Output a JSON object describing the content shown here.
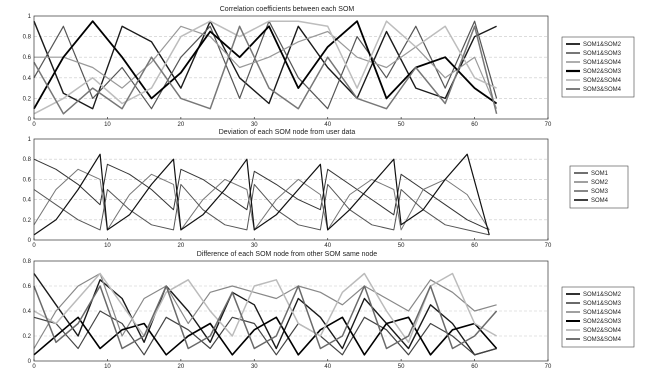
{
  "chart_data": [
    {
      "type": "line",
      "title": "Correlation coefficients between each SOM",
      "xlim": [
        0,
        70
      ],
      "ylim": [
        0,
        1
      ],
      "xticks": [
        0,
        10,
        20,
        30,
        40,
        50,
        60,
        70
      ],
      "yticks": [
        0,
        0.2,
        0.4,
        0.6,
        0.8,
        1
      ],
      "grid": "y-dashed",
      "legend_position": "right",
      "series": [
        {
          "name": "SOM1&SOM2",
          "color": "#1a1a1a",
          "width": 1.4,
          "x": [
            0,
            4,
            8,
            12,
            16,
            20,
            24,
            28,
            32,
            36,
            40,
            44,
            48,
            52,
            56,
            60,
            63
          ],
          "y": [
            0.95,
            0.25,
            0.1,
            0.9,
            0.75,
            0.3,
            0.95,
            0.4,
            0.15,
            0.9,
            0.5,
            0.2,
            0.85,
            0.3,
            0.2,
            0.8,
            0.9
          ]
        },
        {
          "name": "SOM1&SOM3",
          "color": "#555555",
          "width": 1.2,
          "x": [
            0,
            4,
            8,
            12,
            16,
            20,
            24,
            28,
            32,
            36,
            40,
            44,
            48,
            52,
            56,
            60,
            63
          ],
          "y": [
            0.4,
            0.9,
            0.2,
            0.5,
            0.1,
            0.6,
            0.9,
            0.2,
            0.95,
            0.4,
            0.1,
            0.8,
            0.4,
            0.9,
            0.3,
            0.95,
            0.2
          ]
        },
        {
          "name": "SOM1&SOM4",
          "color": "#999999",
          "width": 1.2,
          "x": [
            0,
            4,
            8,
            12,
            16,
            20,
            24,
            28,
            32,
            36,
            40,
            44,
            48,
            52,
            56,
            60,
            63
          ],
          "y": [
            0.6,
            0.6,
            0.5,
            0.3,
            0.55,
            0.9,
            0.8,
            0.5,
            0.6,
            0.75,
            0.85,
            0.6,
            0.5,
            0.7,
            0.4,
            0.6,
            0.1
          ]
        },
        {
          "name": "SOM2&SOM3",
          "color": "#000000",
          "width": 1.8,
          "x": [
            0,
            4,
            8,
            12,
            16,
            20,
            24,
            28,
            32,
            36,
            40,
            44,
            48,
            52,
            56,
            60,
            63
          ],
          "y": [
            0.1,
            0.6,
            0.95,
            0.6,
            0.2,
            0.45,
            0.85,
            0.6,
            0.9,
            0.3,
            0.7,
            0.95,
            0.2,
            0.5,
            0.6,
            0.3,
            0.15
          ]
        },
        {
          "name": "SOM2&SOM4",
          "color": "#bdbdbd",
          "width": 1.5,
          "x": [
            0,
            4,
            8,
            12,
            16,
            20,
            24,
            28,
            32,
            36,
            40,
            44,
            48,
            52,
            56,
            60,
            63
          ],
          "y": [
            0.05,
            0.2,
            0.4,
            0.15,
            0.3,
            0.8,
            0.95,
            0.8,
            0.95,
            0.95,
            0.9,
            0.3,
            0.95,
            0.7,
            0.9,
            0.4,
            0.3
          ]
        },
        {
          "name": "SOM3&SOM4",
          "color": "#777777",
          "width": 1.5,
          "x": [
            0,
            4,
            8,
            12,
            16,
            20,
            24,
            28,
            32,
            36,
            40,
            44,
            48,
            52,
            56,
            60,
            63
          ],
          "y": [
            0.55,
            0.05,
            0.3,
            0.1,
            0.6,
            0.2,
            0.1,
            0.9,
            0.3,
            0.1,
            0.6,
            0.2,
            0.1,
            0.5,
            0.15,
            0.9,
            0.05
          ]
        }
      ]
    },
    {
      "type": "line",
      "title": "Deviation of each SOM node from user data",
      "xlim": [
        0,
        70
      ],
      "ylim": [
        0,
        1
      ],
      "xticks": [
        0,
        10,
        20,
        30,
        40,
        50,
        60,
        70
      ],
      "yticks": [
        0,
        0.2,
        0.4,
        0.6,
        0.8,
        1
      ],
      "grid": "y-dashed",
      "legend_position": "right",
      "series": [
        {
          "name": "SOM1",
          "color": "#333333",
          "width": 1.0,
          "x": [
            0,
            3,
            6,
            9,
            10,
            13,
            16,
            19,
            20,
            23,
            26,
            29,
            30,
            33,
            36,
            39,
            40,
            43,
            46,
            49,
            50,
            53,
            56,
            59,
            62
          ],
          "y": [
            0.8,
            0.7,
            0.55,
            0.35,
            0.75,
            0.65,
            0.5,
            0.3,
            0.7,
            0.6,
            0.45,
            0.3,
            0.68,
            0.55,
            0.4,
            0.3,
            0.7,
            0.55,
            0.4,
            0.25,
            0.65,
            0.5,
            0.35,
            0.2,
            0.1
          ]
        },
        {
          "name": "SOM2",
          "color": "#777777",
          "width": 1.0,
          "x": [
            0,
            3,
            6,
            9,
            10,
            13,
            16,
            19,
            20,
            23,
            26,
            29,
            30,
            33,
            36,
            39,
            40,
            43,
            46,
            49,
            50,
            53,
            56,
            59,
            62
          ],
          "y": [
            0.15,
            0.5,
            0.7,
            0.6,
            0.1,
            0.45,
            0.65,
            0.55,
            0.1,
            0.4,
            0.6,
            0.5,
            0.1,
            0.4,
            0.6,
            0.45,
            0.1,
            0.45,
            0.6,
            0.5,
            0.1,
            0.5,
            0.6,
            0.45,
            0.1
          ]
        },
        {
          "name": "SOM3",
          "color": "#555555",
          "width": 1.0,
          "x": [
            0,
            3,
            6,
            9,
            10,
            13,
            16,
            19,
            20,
            23,
            26,
            29,
            30,
            33,
            36,
            39,
            40,
            43,
            46,
            49,
            50,
            53,
            56,
            59,
            62
          ],
          "y": [
            0.5,
            0.35,
            0.2,
            0.1,
            0.5,
            0.3,
            0.15,
            0.1,
            0.55,
            0.3,
            0.15,
            0.1,
            0.55,
            0.3,
            0.15,
            0.1,
            0.55,
            0.3,
            0.15,
            0.1,
            0.5,
            0.3,
            0.15,
            0.1,
            0.05
          ]
        },
        {
          "name": "SOM4",
          "color": "#111111",
          "width": 1.2,
          "x": [
            0,
            3,
            6,
            9,
            10,
            13,
            16,
            19,
            20,
            23,
            26,
            29,
            30,
            33,
            36,
            39,
            40,
            43,
            46,
            49,
            50,
            53,
            56,
            59,
            62
          ],
          "y": [
            0.05,
            0.2,
            0.5,
            0.85,
            0.1,
            0.25,
            0.55,
            0.8,
            0.1,
            0.25,
            0.5,
            0.8,
            0.1,
            0.25,
            0.5,
            0.75,
            0.1,
            0.3,
            0.55,
            0.8,
            0.15,
            0.3,
            0.6,
            0.85,
            0.05
          ]
        }
      ]
    },
    {
      "type": "line",
      "title": "Difference of each SOM node from other SOM same node",
      "xlim": [
        0,
        70
      ],
      "ylim": [
        0,
        0.8
      ],
      "xticks": [
        0,
        10,
        20,
        30,
        40,
        50,
        60,
        70
      ],
      "yticks": [
        0,
        0.2,
        0.4,
        0.6,
        0.8
      ],
      "grid": "y-dashed",
      "legend_position": "right",
      "series": [
        {
          "name": "SOM1&SOM2",
          "color": "#1a1a1a",
          "width": 1.4,
          "x": [
            0,
            3,
            6,
            9,
            12,
            15,
            18,
            21,
            24,
            27,
            30,
            33,
            36,
            39,
            42,
            45,
            48,
            51,
            54,
            57,
            60,
            63
          ],
          "y": [
            0.7,
            0.45,
            0.2,
            0.65,
            0.5,
            0.15,
            0.6,
            0.4,
            0.15,
            0.55,
            0.45,
            0.1,
            0.5,
            0.35,
            0.1,
            0.5,
            0.3,
            0.1,
            0.45,
            0.3,
            0.05,
            0.1
          ]
        },
        {
          "name": "SOM1&SOM3",
          "color": "#444444",
          "width": 1.2,
          "x": [
            0,
            3,
            6,
            9,
            12,
            15,
            18,
            21,
            24,
            27,
            30,
            33,
            36,
            39,
            42,
            45,
            48,
            51,
            54,
            57,
            60,
            63
          ],
          "y": [
            0.35,
            0.3,
            0.1,
            0.4,
            0.3,
            0.05,
            0.35,
            0.25,
            0.1,
            0.35,
            0.3,
            0.05,
            0.3,
            0.2,
            0.05,
            0.35,
            0.25,
            0.05,
            0.3,
            0.2,
            0.05,
            0.1
          ]
        },
        {
          "name": "SOM1&SOM4",
          "color": "#888888",
          "width": 1.2,
          "x": [
            0,
            3,
            6,
            9,
            12,
            15,
            18,
            21,
            24,
            27,
            30,
            33,
            36,
            39,
            42,
            45,
            48,
            51,
            54,
            57,
            60,
            63
          ],
          "y": [
            0.1,
            0.4,
            0.6,
            0.7,
            0.2,
            0.5,
            0.6,
            0.3,
            0.55,
            0.6,
            0.55,
            0.5,
            0.6,
            0.55,
            0.45,
            0.6,
            0.5,
            0.4,
            0.65,
            0.55,
            0.4,
            0.45
          ]
        },
        {
          "name": "SOM2&SOM3",
          "color": "#000000",
          "width": 1.6,
          "x": [
            0,
            3,
            6,
            9,
            12,
            15,
            18,
            21,
            24,
            27,
            30,
            33,
            36,
            39,
            42,
            45,
            48,
            51,
            54,
            57,
            60,
            63
          ],
          "y": [
            0.05,
            0.2,
            0.35,
            0.1,
            0.25,
            0.3,
            0.05,
            0.2,
            0.3,
            0.05,
            0.25,
            0.35,
            0.05,
            0.25,
            0.35,
            0.05,
            0.3,
            0.35,
            0.05,
            0.25,
            0.3,
            0.1
          ]
        },
        {
          "name": "SOM2&SOM4",
          "color": "#bbbbbb",
          "width": 1.5,
          "x": [
            0,
            3,
            6,
            9,
            12,
            15,
            18,
            21,
            24,
            27,
            30,
            33,
            36,
            39,
            42,
            45,
            48,
            51,
            54,
            57,
            60,
            63
          ],
          "y": [
            0.4,
            0.3,
            0.5,
            0.7,
            0.45,
            0.2,
            0.55,
            0.65,
            0.4,
            0.2,
            0.6,
            0.65,
            0.3,
            0.2,
            0.55,
            0.7,
            0.4,
            0.15,
            0.6,
            0.7,
            0.3,
            0.2
          ]
        },
        {
          "name": "SOM3&SOM4",
          "color": "#6a6a6a",
          "width": 1.5,
          "x": [
            0,
            3,
            6,
            9,
            12,
            15,
            18,
            21,
            24,
            27,
            30,
            33,
            36,
            39,
            42,
            45,
            48,
            51,
            54,
            57,
            60,
            63
          ],
          "y": [
            0.6,
            0.15,
            0.3,
            0.6,
            0.1,
            0.2,
            0.6,
            0.1,
            0.2,
            0.55,
            0.1,
            0.2,
            0.6,
            0.1,
            0.2,
            0.6,
            0.1,
            0.2,
            0.6,
            0.1,
            0.2,
            0.4
          ]
        }
      ]
    }
  ]
}
